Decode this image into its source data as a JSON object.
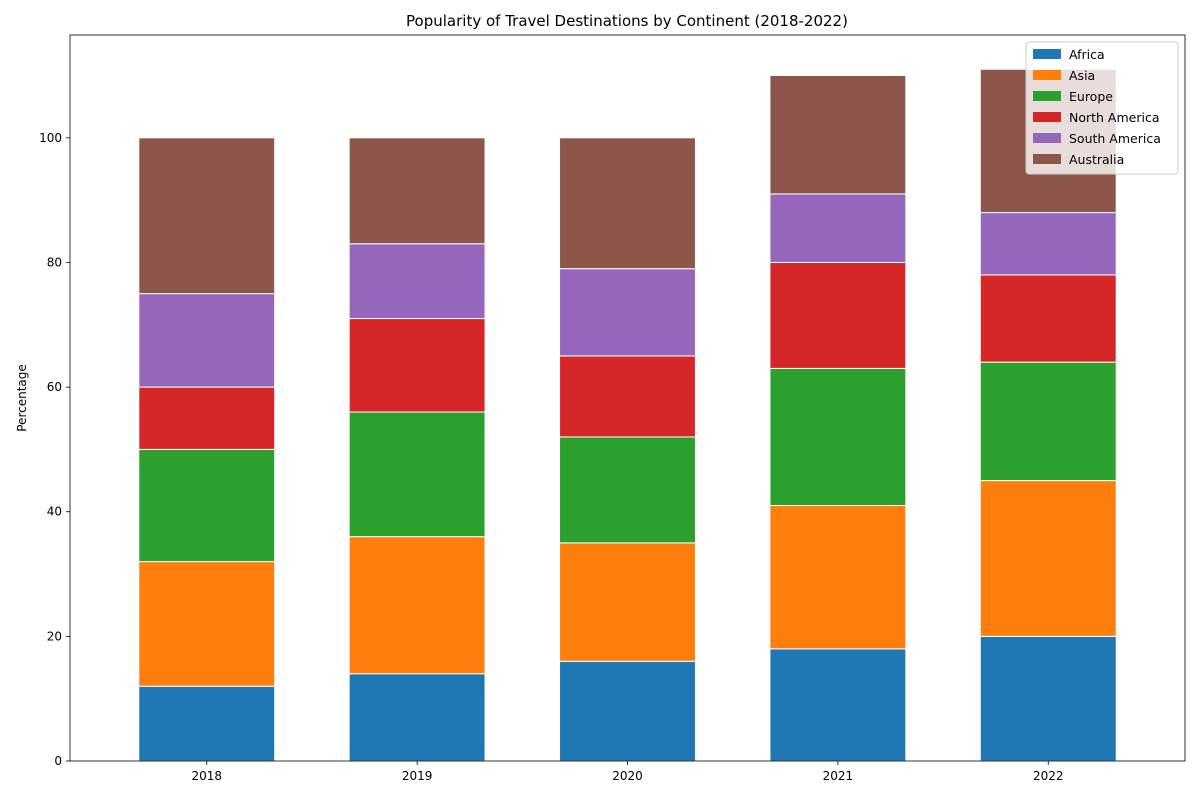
{
  "chart_data": {
    "type": "bar",
    "stacked": true,
    "title": "Popularity of Travel Destinations by Continent (2018-2022)",
    "xlabel": "",
    "ylabel": "Percentage",
    "categories": [
      "2018",
      "2019",
      "2020",
      "2021",
      "2022"
    ],
    "ylim": [
      0,
      116.5
    ],
    "yticks": [
      0,
      20,
      40,
      60,
      80,
      100
    ],
    "grid": false,
    "legend": "top-right",
    "series": [
      {
        "name": "Africa",
        "color": "#1f77b4",
        "values": [
          12,
          14,
          16,
          18,
          20
        ]
      },
      {
        "name": "Asia",
        "color": "#ff7f0e",
        "values": [
          20,
          22,
          19,
          23,
          25
        ]
      },
      {
        "name": "Europe",
        "color": "#2ca02c",
        "values": [
          18,
          20,
          17,
          22,
          19
        ]
      },
      {
        "name": "North America",
        "color": "#d62728",
        "values": [
          10,
          15,
          13,
          17,
          14
        ]
      },
      {
        "name": "South America",
        "color": "#9467bd",
        "values": [
          15,
          12,
          14,
          11,
          10
        ]
      },
      {
        "name": "Australia",
        "color": "#8c564b",
        "values": [
          25,
          17,
          21,
          19,
          23
        ]
      }
    ]
  }
}
